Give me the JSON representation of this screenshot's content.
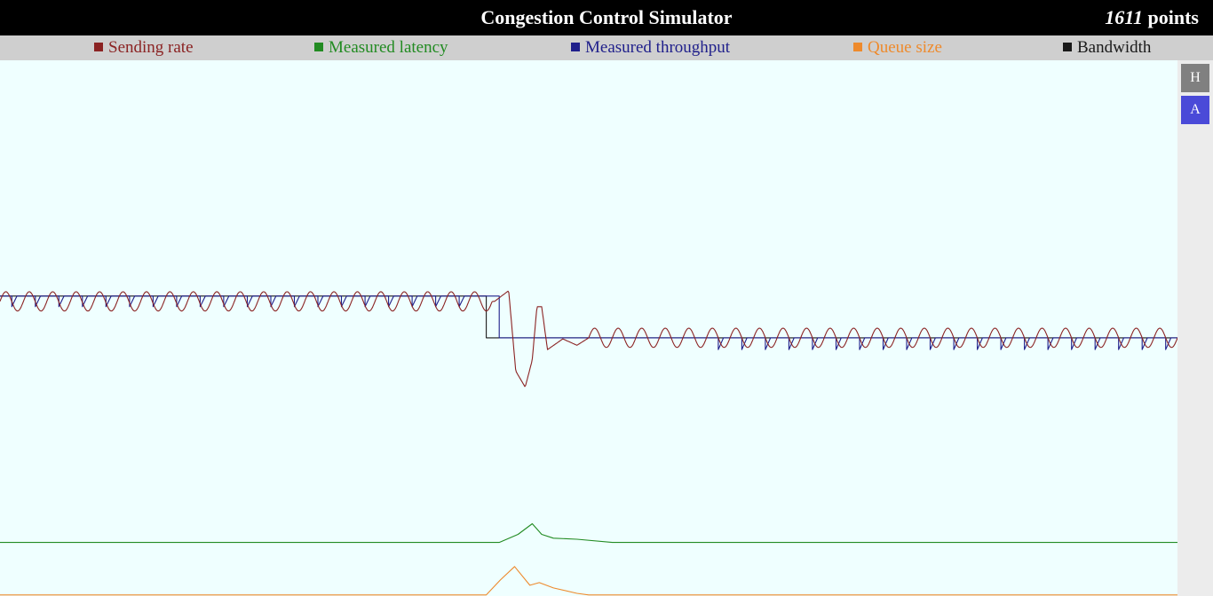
{
  "header": {
    "title": "Congestion Control Simulator",
    "score_value": "1611",
    "score_unit": "points"
  },
  "legend": [
    {
      "label": "Sending rate",
      "color": "#8b2323"
    },
    {
      "label": "Measured latency",
      "color": "#228b22"
    },
    {
      "label": "Measured throughput",
      "color": "#1f1f8b"
    },
    {
      "label": "Queue size",
      "color": "#ee8a2c"
    },
    {
      "label": "Bandwidth",
      "color": "#1a1a1a"
    }
  ],
  "sidebar": {
    "buttons": [
      {
        "label": "H",
        "color": "#808080"
      },
      {
        "label": "A",
        "color": "#4a4ad8"
      }
    ]
  },
  "chart_data": {
    "type": "line",
    "grid": false,
    "x_range": [
      0,
      1
    ],
    "y_range": [
      0,
      1
    ],
    "series": [
      {
        "name": "Bandwidth",
        "color": "#1a1a1a",
        "points": [
          [
            0,
            0.56
          ],
          [
            0.413,
            0.56
          ],
          [
            0.413,
            0.482
          ],
          [
            1,
            0.482
          ]
        ]
      },
      {
        "name": "Measured throughput",
        "color": "#1f1f8b",
        "points": [
          [
            0,
            0.56
          ],
          [
            0.424,
            0.56
          ],
          [
            0.424,
            0.482
          ],
          [
            1,
            0.482
          ]
        ],
        "dips": [
          {
            "from": 0,
            "to": 0.41,
            "depth": 0.02
          },
          {
            "from": 0.6,
            "to": 1,
            "depth": 0.022
          }
        ]
      },
      {
        "name": "Sending rate",
        "color": "#8b2323",
        "points": [
          [
            0,
            0.55
          ],
          [
            0.42,
            0.55
          ],
          [
            0.432,
            0.57
          ],
          [
            0.438,
            0.42
          ],
          [
            0.446,
            0.39
          ],
          [
            0.452,
            0.44
          ],
          [
            0.456,
            0.54
          ],
          [
            0.46,
            0.54
          ],
          [
            0.465,
            0.46
          ],
          [
            0.478,
            0.48
          ],
          [
            0.49,
            0.468
          ],
          [
            0.5,
            0.482
          ],
          [
            1,
            0.482
          ]
        ],
        "oscillations": [
          {
            "from": 0,
            "to": 0.418,
            "amplitude": 0.018,
            "cycles": 21
          },
          {
            "from": 0.5,
            "to": 1,
            "amplitude": 0.018,
            "cycles": 25
          }
        ]
      },
      {
        "name": "Measured latency",
        "color": "#228b22",
        "points": [
          [
            0,
            0.1
          ],
          [
            0.424,
            0.1
          ],
          [
            0.44,
            0.115
          ],
          [
            0.452,
            0.135
          ],
          [
            0.46,
            0.115
          ],
          [
            0.47,
            0.108
          ],
          [
            0.49,
            0.106
          ],
          [
            0.52,
            0.1
          ],
          [
            1,
            0.1
          ]
        ]
      },
      {
        "name": "Queue size",
        "color": "#ee8a2c",
        "points": [
          [
            0,
            0.002
          ],
          [
            0.413,
            0.002
          ],
          [
            0.425,
            0.03
          ],
          [
            0.437,
            0.055
          ],
          [
            0.45,
            0.02
          ],
          [
            0.458,
            0.025
          ],
          [
            0.47,
            0.015
          ],
          [
            0.49,
            0.005
          ],
          [
            0.5,
            0.002
          ],
          [
            1,
            0.002
          ]
        ]
      }
    ]
  }
}
